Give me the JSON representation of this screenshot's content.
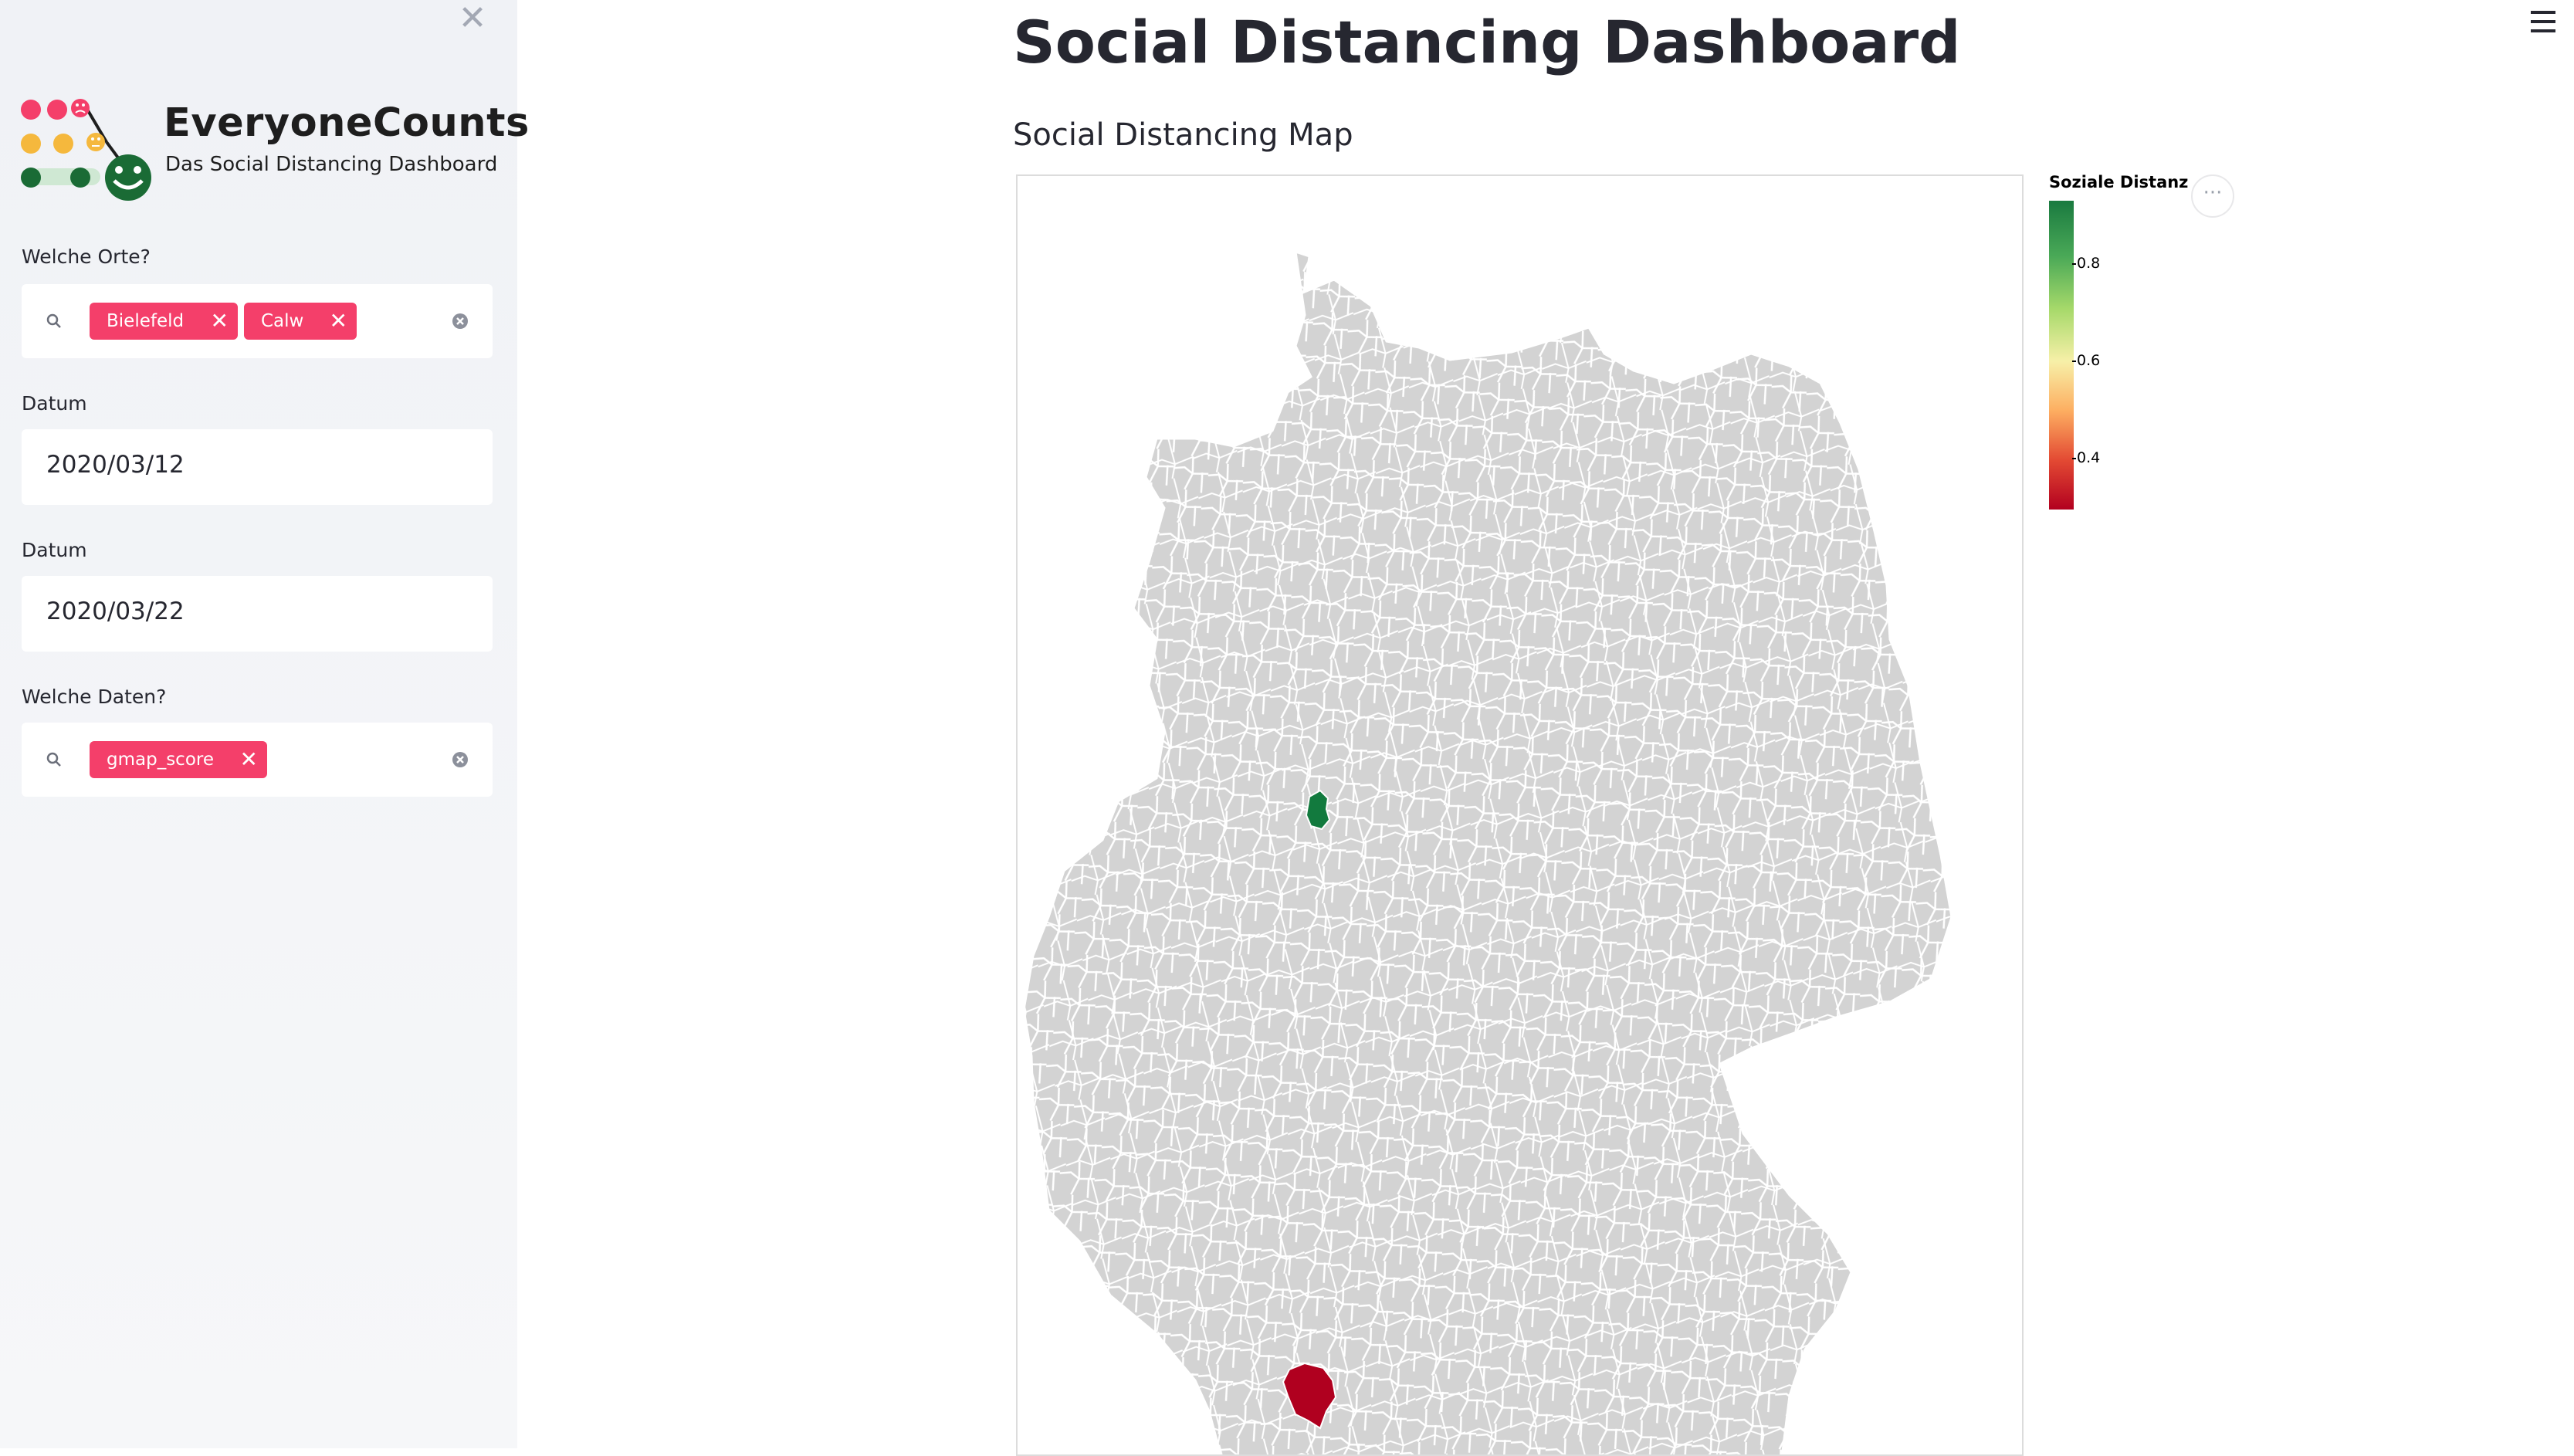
{
  "sidebar": {
    "close_glyph": "✕",
    "brand": {
      "name": "EveryoneCounts",
      "subtitle": "Das Social Distancing Dashboard",
      "colors": {
        "pink": "#f43f6a",
        "yellow": "#f5b83d",
        "green": "#1a6b35"
      }
    },
    "places": {
      "label": "Welche Orte?",
      "tags": [
        "Bielefeld",
        "Calw"
      ],
      "tag_remove_glyph": "✕"
    },
    "date_from": {
      "label": "Datum",
      "value": "2020/03/12"
    },
    "date_to": {
      "label": "Datum",
      "value": "2020/03/22"
    },
    "datasets": {
      "label": "Welche Daten?",
      "tags": [
        "gmap_score"
      ],
      "tag_remove_glyph": "✕"
    }
  },
  "main": {
    "title": "Social Distancing Dashboard",
    "map_section_title": "Social Distancing Map",
    "more_glyph": "···",
    "map": {
      "base_fill": "#d3d3d3",
      "border_color": "#ffffff",
      "highlighted_regions": [
        {
          "region": "Bielefeld",
          "color": "#127a3e"
        },
        {
          "region": "Calw",
          "color": "#b0001f"
        }
      ]
    },
    "legend": {
      "title": "Soziale Distanz",
      "ticks": [
        "0.8",
        "0.6",
        "0.4"
      ],
      "scale_colors": [
        "#1a7a40",
        "#a6d96a",
        "#f7f0a8",
        "#fdae61",
        "#b2001f"
      ]
    }
  },
  "icons": {
    "search": "search-icon",
    "clear": "clear-all-icon",
    "close": "close-icon",
    "menu": "hamburger-menu-icon",
    "more": "more-options-icon"
  },
  "accent_tag_color": "#f43f6a"
}
